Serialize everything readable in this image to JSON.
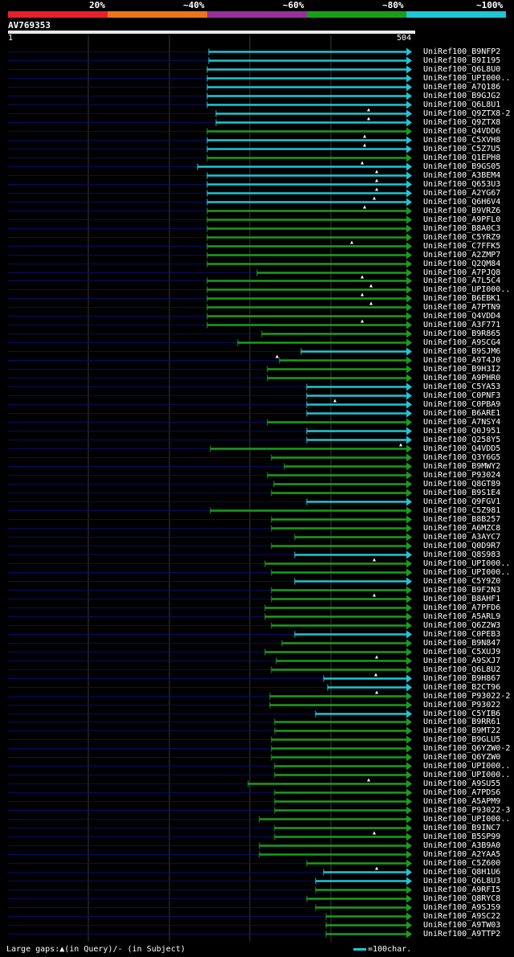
{
  "legend": [
    {
      "label": "20%",
      "color": "#e8202e"
    },
    {
      "label": "~40%",
      "color": "#e8761a"
    },
    {
      "label": "~60%",
      "color": "#9a2f9a"
    },
    {
      "label": "~80%",
      "color": "#1a9e1a"
    },
    {
      "label": "~100%",
      "color": "#1fc6d4"
    }
  ],
  "query": {
    "id": "AV769353",
    "start": "1",
    "end": "504"
  },
  "colors": {
    "cyan": "#1fc6d4",
    "green": "#1a9e1a",
    "navy": "#0a0a66",
    "grid": "#3a3a3a"
  },
  "hits": [
    {
      "name": "UniRef100_B9NFP2",
      "color": "cyan"
    },
    {
      "name": "UniRef100_B9I195",
      "color": "cyan"
    },
    {
      "name": "UniRef100_Q6L8U0",
      "color": "cyan"
    },
    {
      "name": "UniRef100_UPI000..",
      "color": "cyan"
    },
    {
      "name": "UniRef100_A7Q186",
      "color": "cyan"
    },
    {
      "name": "UniRef100_B9GJG2",
      "color": "cyan"
    },
    {
      "name": "UniRef100_Q6L8U1",
      "color": "cyan"
    },
    {
      "name": "UniRef100_Q9ZTX8-2",
      "color": "cyan"
    },
    {
      "name": "UniRef100_Q9ZTX8",
      "color": "cyan"
    },
    {
      "name": "UniRef100_Q4VDD6",
      "color": "green"
    },
    {
      "name": "UniRef100_C5XVH8",
      "color": "cyan"
    },
    {
      "name": "UniRef100_C5Z7U5",
      "color": "cyan"
    },
    {
      "name": "UniRef100_Q1EPH8",
      "color": "green"
    },
    {
      "name": "UniRef100_B9GS05",
      "color": "cyan"
    },
    {
      "name": "UniRef100_A3BEM4",
      "color": "cyan"
    },
    {
      "name": "UniRef100_Q653U3",
      "color": "cyan"
    },
    {
      "name": "UniRef100_A2YG67",
      "color": "cyan"
    },
    {
      "name": "UniRef100_Q6H6V4",
      "color": "cyan"
    },
    {
      "name": "UniRef100_B9VRZ6",
      "color": "green"
    },
    {
      "name": "UniRef100_A9PFL0",
      "color": "green"
    },
    {
      "name": "UniRef100_B8A0C3",
      "color": "green"
    },
    {
      "name": "UniRef100_C5YRZ9",
      "color": "green"
    },
    {
      "name": "UniRef100_C7FFK5",
      "color": "green"
    },
    {
      "name": "UniRef100_A2ZMP7",
      "color": "green"
    },
    {
      "name": "UniRef100_Q2QM84",
      "color": "green"
    },
    {
      "name": "UniRef100_A7PJQ8",
      "color": "green"
    },
    {
      "name": "UniRef100_A7L5C4",
      "color": "green"
    },
    {
      "name": "UniRef100_UPI000..",
      "color": "green"
    },
    {
      "name": "UniRef100_B6EBK1",
      "color": "green"
    },
    {
      "name": "UniRef100_A7PTN9",
      "color": "green"
    },
    {
      "name": "UniRef100_Q4VDD4",
      "color": "green"
    },
    {
      "name": "UniRef100_A3F771",
      "color": "green"
    },
    {
      "name": "UniRef100_B9R865",
      "color": "green"
    },
    {
      "name": "UniRef100_A9SCG4",
      "color": "green"
    },
    {
      "name": "UniRef100_B9SJM6",
      "color": "cyan"
    },
    {
      "name": "UniRef100_A9T4J0",
      "color": "green"
    },
    {
      "name": "UniRef100_B9H3I2",
      "color": "green"
    },
    {
      "name": "UniRef100_A9PHR0",
      "color": "green"
    },
    {
      "name": "UniRef100_C5YA53",
      "color": "cyan"
    },
    {
      "name": "UniRef100_C0PNF3",
      "color": "cyan"
    },
    {
      "name": "UniRef100_C0PBA9",
      "color": "cyan"
    },
    {
      "name": "UniRef100_B6ARE1",
      "color": "cyan"
    },
    {
      "name": "UniRef100_A7NSY4",
      "color": "green"
    },
    {
      "name": "UniRef100_Q0J951",
      "color": "cyan"
    },
    {
      "name": "UniRef100_Q258Y5",
      "color": "cyan"
    },
    {
      "name": "UniRef100_Q4VDD5",
      "color": "green"
    },
    {
      "name": "UniRef100_Q3Y6G5",
      "color": "green"
    },
    {
      "name": "UniRef100_B9MWY2",
      "color": "green"
    },
    {
      "name": "UniRef100_P93024",
      "color": "green"
    },
    {
      "name": "UniRef100_Q8GT89",
      "color": "green"
    },
    {
      "name": "UniRef100_B9S1E4",
      "color": "green"
    },
    {
      "name": "UniRef100_Q9FGV1",
      "color": "cyan"
    },
    {
      "name": "UniRef100_C5Z981",
      "color": "green"
    },
    {
      "name": "UniRef100_B8B257",
      "color": "green"
    },
    {
      "name": "UniRef100_A6MZC8",
      "color": "green"
    },
    {
      "name": "UniRef100_A3AYC7",
      "color": "green"
    },
    {
      "name": "UniRef100_Q0D9R7",
      "color": "green"
    },
    {
      "name": "UniRef100_Q8S983",
      "color": "cyan"
    },
    {
      "name": "UniRef100_UPI000..",
      "color": "green"
    },
    {
      "name": "UniRef100_UPI000..",
      "color": "green"
    },
    {
      "name": "UniRef100_C5Y9Z0",
      "color": "cyan"
    },
    {
      "name": "UniRef100_B9F2N3",
      "color": "green"
    },
    {
      "name": "UniRef100_B8AHF1",
      "color": "green"
    },
    {
      "name": "UniRef100_A7PFD6",
      "color": "green"
    },
    {
      "name": "UniRef100_A5ARL9",
      "color": "green"
    },
    {
      "name": "UniRef100_Q6Z2W3",
      "color": "green"
    },
    {
      "name": "UniRef100_C0PEB3",
      "color": "cyan"
    },
    {
      "name": "UniRef100_B9N847",
      "color": "green"
    },
    {
      "name": "UniRef100_C5XUJ9",
      "color": "green"
    },
    {
      "name": "UniRef100_A9SXJ7",
      "color": "green"
    },
    {
      "name": "UniRef100_Q6L8U2",
      "color": "green"
    },
    {
      "name": "UniRef100_B9H867",
      "color": "cyan"
    },
    {
      "name": "UniRef100_B2CT96",
      "color": "cyan"
    },
    {
      "name": "UniRef100_P93022-2",
      "color": "green"
    },
    {
      "name": "UniRef100_P93022",
      "color": "green"
    },
    {
      "name": "UniRef100_C5YIB6",
      "color": "cyan"
    },
    {
      "name": "UniRef100_B9RR61",
      "color": "green"
    },
    {
      "name": "UniRef100_B9MT22",
      "color": "green"
    },
    {
      "name": "UniRef100_B9GLU5",
      "color": "green"
    },
    {
      "name": "UniRef100_Q6YZW0-2",
      "color": "green"
    },
    {
      "name": "UniRef100_Q6YZW0",
      "color": "green"
    },
    {
      "name": "UniRef100_UPI000..",
      "color": "green"
    },
    {
      "name": "UniRef100_UPI000..",
      "color": "green"
    },
    {
      "name": "UniRef100_A9SU55",
      "color": "green"
    },
    {
      "name": "UniRef100_A7PDS6",
      "color": "green"
    },
    {
      "name": "UniRef100_A5APM9",
      "color": "green"
    },
    {
      "name": "UniRef100_P93022-3",
      "color": "green"
    },
    {
      "name": "UniRef100_UPI000..",
      "color": "green"
    },
    {
      "name": "UniRef100_B9INC7",
      "color": "green"
    },
    {
      "name": "UniRef100_B5SP99",
      "color": "green"
    },
    {
      "name": "UniRef100_A3B9A0",
      "color": "green"
    },
    {
      "name": "UniRef100_A2YAA5",
      "color": "green"
    },
    {
      "name": "UniRef100_C5Z600",
      "color": "green"
    },
    {
      "name": "UniRef100_Q8H1U6",
      "color": "cyan"
    },
    {
      "name": "UniRef100_Q6L8U3",
      "color": "cyan"
    },
    {
      "name": "UniRef100_A9RFI5",
      "color": "green"
    },
    {
      "name": "UniRef100_Q8RYC8",
      "color": "green"
    },
    {
      "name": "UniRef100_A9SJS9",
      "color": "green"
    },
    {
      "name": "UniRef100_A9SC22",
      "color": "green"
    },
    {
      "name": "UniRef100_A9TW03",
      "color": "green"
    },
    {
      "name": "UniRef100_A9TTP2",
      "color": "green"
    }
  ],
  "footer": {
    "text": "Large gaps:▲(in Query)/- (in Subject)",
    "scale": "=100char."
  }
}
